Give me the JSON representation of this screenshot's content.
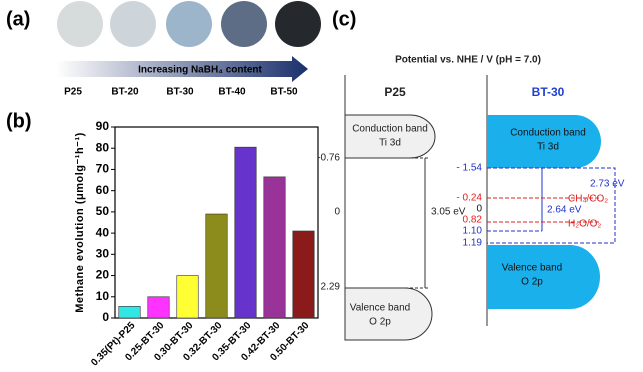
{
  "panel_labels": [
    "(a)",
    "(b)",
    "(c)"
  ],
  "samples": {
    "names": [
      "P25",
      "BT-20",
      "BT-30",
      "BT-40",
      "BT-50"
    ],
    "arrow_text": "Increasing NaBH₄ content"
  },
  "chart_data": {
    "type": "bar",
    "y_label": "Methane evolution (μmolg⁻¹h⁻¹)",
    "categories": [
      "0.35(Pt)-P25",
      "0.25-BT-30",
      "0.30-BT-30",
      "0.32-BT-30",
      "0.35-BT-30",
      "0.42-BT-30",
      "0.50-BT-30"
    ],
    "values": [
      5.5,
      10,
      20,
      49,
      80.5,
      66.5,
      41
    ],
    "colors": [
      "#33e6e6",
      "#ff33ff",
      "#ffff33",
      "#8c8c1c",
      "#6633cc",
      "#993399",
      "#8b1a1a"
    ],
    "ylim": [
      0,
      90
    ],
    "yticks": [
      0,
      10,
      20,
      30,
      40,
      50,
      60,
      70,
      80,
      90
    ]
  },
  "band_diagram": {
    "title": "Potential vs. NHE / V (pH = 7.0)",
    "p25": {
      "name": "P25",
      "cb": "Conduction band",
      "cb_orbital": "Ti 3d",
      "vb": "Valence band",
      "vb_orbital": "O 2p",
      "levels": [
        "-0.76",
        "0",
        "2.29"
      ],
      "gap": "3.05 eV"
    },
    "bt30": {
      "name": "BT-30",
      "cb": "Conduction band",
      "cb_orbital": "Ti 3d",
      "vb": "Valence band",
      "vb_orbital": "O 2p",
      "levels": [
        "- 1.54",
        "- 0.24",
        "0",
        "0.82",
        "1.10",
        "1.19"
      ],
      "gap_outer": "2.73 eV",
      "gap_inner": "2.64 eV",
      "couples": [
        "CH₄/CO₂",
        "H₂O/O₂"
      ]
    }
  }
}
